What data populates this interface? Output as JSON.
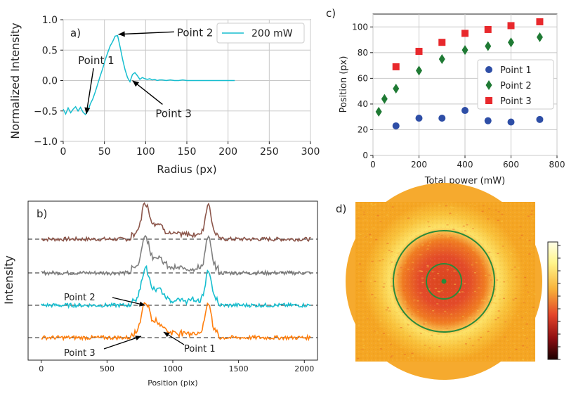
{
  "colors": {
    "cyan": "#17becf",
    "orange": "#ff7f0e",
    "gray": "#7f7f7f",
    "brown": "#8c564b",
    "blue": "#2e4ea6",
    "green": "#1f7a34",
    "red": "#e8282c",
    "grid": "#c8c8c8",
    "ring": "#2a8a3a",
    "img_bg": "#f5a623"
  },
  "chart_data": [
    {
      "id": "a",
      "type": "line",
      "panel_label": "a)",
      "xlabel": "Radius (px)",
      "ylabel": "Normalized Intensity",
      "xlim": [
        0,
        300
      ],
      "ylim": [
        -1.0,
        1.0
      ],
      "xticks": [
        "0",
        "50",
        "100",
        "150",
        "200",
        "250",
        "300"
      ],
      "yticks": [
        "−1.0",
        "−0.5",
        "0.0",
        "0.5",
        "1.0"
      ],
      "grid": true,
      "legend": "top-right",
      "series": [
        {
          "name": "200 mW",
          "x": [
            0,
            3,
            6,
            9,
            12,
            15,
            18,
            21,
            24,
            27,
            30,
            33,
            36,
            39,
            42,
            45,
            48,
            51,
            54,
            57,
            60,
            63,
            66,
            69,
            72,
            75,
            78,
            81,
            84,
            87,
            90,
            93,
            96,
            99,
            102,
            105,
            108,
            111,
            114,
            117,
            120,
            125,
            130,
            135,
            140,
            145,
            150,
            155,
            160,
            165,
            170,
            175,
            180,
            185,
            190,
            195,
            200,
            205,
            208
          ],
          "y": [
            -0.47,
            -0.55,
            -0.45,
            -0.53,
            -0.47,
            -0.43,
            -0.5,
            -0.44,
            -0.52,
            -0.56,
            -0.5,
            -0.38,
            -0.3,
            -0.18,
            -0.05,
            0.08,
            0.2,
            0.34,
            0.46,
            0.57,
            0.64,
            0.73,
            0.74,
            0.55,
            0.35,
            0.18,
            0.05,
            -0.02,
            0.1,
            0.13,
            0.08,
            0.02,
            0.05,
            0.03,
            0.02,
            0.03,
            0.01,
            0.02,
            0.0,
            0.01,
            0.01,
            0.0,
            0.01,
            0.0,
            0.0,
            0.01,
            0.0,
            0.0,
            0.0,
            0.0,
            0.0,
            0.0,
            0.0,
            0.0,
            0.0,
            0.0,
            0.0,
            0.0,
            0.0
          ]
        }
      ],
      "annotations": [
        {
          "text": "Point 1",
          "xy": [
            28,
            -0.55
          ],
          "xytext": [
            18,
            0.27
          ]
        },
        {
          "text": "Point 2",
          "xy": [
            67,
            0.76
          ],
          "xytext": [
            138,
            0.73
          ]
        },
        {
          "text": "Point 3",
          "xy": [
            84,
            0.0
          ],
          "xytext": [
            112,
            -0.6
          ]
        }
      ]
    },
    {
      "id": "b",
      "type": "line",
      "panel_label": "b)",
      "xlabel": "Position (pix)",
      "ylabel": "Intensity",
      "xlim": [
        -100,
        2100
      ],
      "xticks": [
        0,
        500,
        1000,
        1500,
        2000
      ],
      "grid": false,
      "traces": [
        {
          "name": "brown",
          "color_key": "brown",
          "baseline": 3,
          "x_start": 0,
          "x_end": 2050,
          "peak1_x": 790,
          "peak2_x": 1270,
          "peak1_h": 0.95,
          "peak2_h": 0.95
        },
        {
          "name": "gray",
          "color_key": "gray",
          "baseline": 2,
          "x_start": 0,
          "x_end": 2050,
          "peak1_x": 790,
          "peak2_x": 1270,
          "peak1_h": 0.95,
          "peak2_h": 0.95
        },
        {
          "name": "cyan",
          "color_key": "cyan",
          "baseline": 1,
          "x_start": 0,
          "x_end": 2050,
          "peak1_x": 790,
          "peak2_x": 1270,
          "peak1_h": 0.95,
          "peak2_h": 0.95
        },
        {
          "name": "orange",
          "color_key": "orange",
          "baseline": 0,
          "x_start": 0,
          "x_end": 2050,
          "peak1_x": 790,
          "peak2_x": 1270,
          "peak1_h": 0.95,
          "peak2_h": 0.95
        }
      ],
      "annotations": [
        {
          "text": "Point 2",
          "xy": [
            790,
            1.0
          ],
          "xytext": [
            180,
            1.2
          ]
        },
        {
          "text": "Point 3",
          "xy": [
            760,
            0.05
          ],
          "xytext": [
            180,
            -0.55
          ]
        },
        {
          "text": "Point 1",
          "xy": [
            930,
            0.12
          ],
          "xytext": [
            1150,
            -0.45
          ]
        }
      ]
    },
    {
      "id": "c",
      "type": "scatter",
      "panel_label": "c)",
      "xlabel": "Total power (mW)",
      "ylabel": "Position (px)",
      "xlim": [
        0,
        800
      ],
      "ylim": [
        0,
        110
      ],
      "xticks": [
        0,
        200,
        400,
        600,
        800
      ],
      "yticks": [
        0,
        20,
        40,
        60,
        80,
        100
      ],
      "grid": true,
      "legend": "center-right",
      "series": [
        {
          "name": "Point 1",
          "marker": "circle",
          "color_key": "blue",
          "x": [
            100,
            200,
            300,
            400,
            500,
            600,
            725
          ],
          "y": [
            23,
            29,
            29,
            35,
            27,
            26,
            28
          ]
        },
        {
          "name": "Point 2",
          "marker": "diamond",
          "color_key": "green",
          "x": [
            25,
            50,
            100,
            200,
            300,
            400,
            500,
            600,
            725
          ],
          "y": [
            34,
            44,
            52,
            66,
            75,
            82,
            85,
            88,
            92
          ]
        },
        {
          "name": "Point 3",
          "marker": "square",
          "color_key": "red",
          "x": [
            100,
            200,
            300,
            400,
            500,
            600,
            725
          ],
          "y": [
            69,
            81,
            88,
            95,
            98,
            101,
            104
          ]
        }
      ]
    }
  ],
  "panel_d": {
    "label": "d)"
  }
}
